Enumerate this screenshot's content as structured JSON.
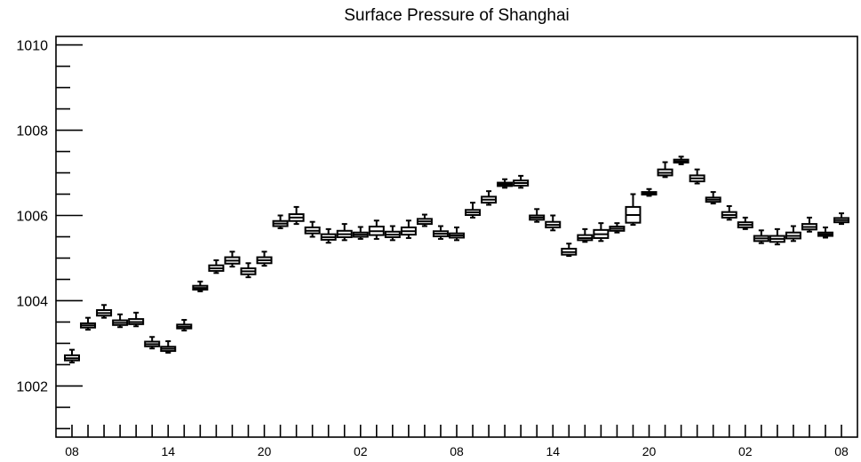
{
  "chart_data": {
    "type": "box",
    "title": "Surface Pressure of Shanghai",
    "xlabel": "",
    "ylabel": "",
    "ylim": [
      1000.8,
      1010.2
    ],
    "y_ticks": [
      "1002",
      "1004",
      "1006",
      "1008",
      "1010"
    ],
    "x_tick_labels": [
      "08",
      "14",
      "20",
      "02",
      "08",
      "14",
      "20",
      "02",
      "08"
    ],
    "x_tick_hours": [
      0,
      6,
      12,
      18,
      24,
      30,
      36,
      42,
      48
    ],
    "grid": false,
    "boxes": [
      {
        "hour": 0,
        "min": 1002.55,
        "q1": 1002.6,
        "median": 1002.65,
        "q3": 1002.72,
        "max": 1002.85
      },
      {
        "hour": 1,
        "min": 1003.32,
        "q1": 1003.37,
        "median": 1003.42,
        "q3": 1003.47,
        "max": 1003.6
      },
      {
        "hour": 2,
        "min": 1003.6,
        "q1": 1003.65,
        "median": 1003.71,
        "q3": 1003.78,
        "max": 1003.9
      },
      {
        "hour": 3,
        "min": 1003.38,
        "q1": 1003.43,
        "median": 1003.48,
        "q3": 1003.54,
        "max": 1003.68
      },
      {
        "hour": 4,
        "min": 1003.4,
        "q1": 1003.45,
        "median": 1003.5,
        "q3": 1003.57,
        "max": 1003.72
      },
      {
        "hour": 5,
        "min": 1002.88,
        "q1": 1002.93,
        "median": 1002.98,
        "q3": 1003.04,
        "max": 1003.15
      },
      {
        "hour": 6,
        "min": 1002.78,
        "q1": 1002.82,
        "median": 1002.87,
        "q3": 1002.92,
        "max": 1003.05
      },
      {
        "hour": 7,
        "min": 1003.3,
        "q1": 1003.35,
        "median": 1003.39,
        "q3": 1003.44,
        "max": 1003.55
      },
      {
        "hour": 8,
        "min": 1004.22,
        "q1": 1004.26,
        "median": 1004.3,
        "q3": 1004.35,
        "max": 1004.45
      },
      {
        "hour": 9,
        "min": 1004.65,
        "q1": 1004.7,
        "median": 1004.76,
        "q3": 1004.83,
        "max": 1004.95
      },
      {
        "hour": 10,
        "min": 1004.8,
        "q1": 1004.87,
        "median": 1004.94,
        "q3": 1005.02,
        "max": 1005.15
      },
      {
        "hour": 11,
        "min": 1004.55,
        "q1": 1004.62,
        "median": 1004.69,
        "q3": 1004.76,
        "max": 1004.88
      },
      {
        "hour": 12,
        "min": 1004.82,
        "q1": 1004.88,
        "median": 1004.95,
        "q3": 1005.02,
        "max": 1005.15
      },
      {
        "hour": 13,
        "min": 1005.7,
        "q1": 1005.75,
        "median": 1005.81,
        "q3": 1005.87,
        "max": 1006.0
      },
      {
        "hour": 14,
        "min": 1005.8,
        "q1": 1005.87,
        "median": 1005.95,
        "q3": 1006.03,
        "max": 1006.2
      },
      {
        "hour": 15,
        "min": 1005.5,
        "q1": 1005.58,
        "median": 1005.64,
        "q3": 1005.72,
        "max": 1005.85
      },
      {
        "hour": 16,
        "min": 1005.36,
        "q1": 1005.43,
        "median": 1005.49,
        "q3": 1005.56,
        "max": 1005.68
      },
      {
        "hour": 17,
        "min": 1005.42,
        "q1": 1005.49,
        "median": 1005.56,
        "q3": 1005.64,
        "max": 1005.8
      },
      {
        "hour": 18,
        "min": 1005.45,
        "q1": 1005.5,
        "median": 1005.55,
        "q3": 1005.6,
        "max": 1005.73
      },
      {
        "hour": 19,
        "min": 1005.45,
        "q1": 1005.54,
        "median": 1005.63,
        "q3": 1005.74,
        "max": 1005.88
      },
      {
        "hour": 20,
        "min": 1005.42,
        "q1": 1005.49,
        "median": 1005.55,
        "q3": 1005.62,
        "max": 1005.75
      },
      {
        "hour": 21,
        "min": 1005.47,
        "q1": 1005.55,
        "median": 1005.63,
        "q3": 1005.72,
        "max": 1005.88
      },
      {
        "hour": 22,
        "min": 1005.75,
        "q1": 1005.8,
        "median": 1005.86,
        "q3": 1005.92,
        "max": 1006.02
      },
      {
        "hour": 23,
        "min": 1005.45,
        "q1": 1005.51,
        "median": 1005.57,
        "q3": 1005.63,
        "max": 1005.75
      },
      {
        "hour": 24,
        "min": 1005.42,
        "q1": 1005.48,
        "median": 1005.53,
        "q3": 1005.58,
        "max": 1005.72
      },
      {
        "hour": 25,
        "min": 1005.95,
        "q1": 1006.01,
        "median": 1006.07,
        "q3": 1006.13,
        "max": 1006.3
      },
      {
        "hour": 26,
        "min": 1006.25,
        "q1": 1006.3,
        "median": 1006.37,
        "q3": 1006.44,
        "max": 1006.57
      },
      {
        "hour": 27,
        "min": 1006.65,
        "q1": 1006.69,
        "median": 1006.73,
        "q3": 1006.77,
        "max": 1006.85
      },
      {
        "hour": 28,
        "min": 1006.65,
        "q1": 1006.7,
        "median": 1006.76,
        "q3": 1006.82,
        "max": 1006.93
      },
      {
        "hour": 29,
        "min": 1005.85,
        "q1": 1005.9,
        "median": 1005.95,
        "q3": 1006.0,
        "max": 1006.15
      },
      {
        "hour": 30,
        "min": 1005.65,
        "q1": 1005.72,
        "median": 1005.78,
        "q3": 1005.85,
        "max": 1006.0
      },
      {
        "hour": 31,
        "min": 1005.05,
        "q1": 1005.08,
        "median": 1005.14,
        "q3": 1005.22,
        "max": 1005.34
      },
      {
        "hour": 32,
        "min": 1005.38,
        "q1": 1005.42,
        "median": 1005.47,
        "q3": 1005.54,
        "max": 1005.68
      },
      {
        "hour": 33,
        "min": 1005.4,
        "q1": 1005.47,
        "median": 1005.56,
        "q3": 1005.66,
        "max": 1005.82
      },
      {
        "hour": 34,
        "min": 1005.6,
        "q1": 1005.64,
        "median": 1005.69,
        "q3": 1005.74,
        "max": 1005.82
      },
      {
        "hour": 35,
        "min": 1005.78,
        "q1": 1005.83,
        "median": 1006.01,
        "q3": 1006.2,
        "max": 1006.5
      },
      {
        "hour": 36,
        "min": 1006.46,
        "q1": 1006.49,
        "median": 1006.52,
        "q3": 1006.55,
        "max": 1006.62
      },
      {
        "hour": 37,
        "min": 1006.9,
        "q1": 1006.94,
        "median": 1007.0,
        "q3": 1007.08,
        "max": 1007.25
      },
      {
        "hour": 38,
        "min": 1007.2,
        "q1": 1007.24,
        "median": 1007.27,
        "q3": 1007.31,
        "max": 1007.38
      },
      {
        "hour": 39,
        "min": 1006.75,
        "q1": 1006.8,
        "median": 1006.87,
        "q3": 1006.94,
        "max": 1007.08
      },
      {
        "hour": 40,
        "min": 1006.28,
        "q1": 1006.32,
        "median": 1006.37,
        "q3": 1006.42,
        "max": 1006.55
      },
      {
        "hour": 41,
        "min": 1005.9,
        "q1": 1005.95,
        "median": 1006.01,
        "q3": 1006.08,
        "max": 1006.22
      },
      {
        "hour": 42,
        "min": 1005.68,
        "q1": 1005.72,
        "median": 1005.78,
        "q3": 1005.84,
        "max": 1005.95
      },
      {
        "hour": 43,
        "min": 1005.35,
        "q1": 1005.4,
        "median": 1005.46,
        "q3": 1005.52,
        "max": 1005.65
      },
      {
        "hour": 44,
        "min": 1005.32,
        "q1": 1005.38,
        "median": 1005.45,
        "q3": 1005.52,
        "max": 1005.68
      },
      {
        "hour": 45,
        "min": 1005.4,
        "q1": 1005.46,
        "median": 1005.52,
        "q3": 1005.6,
        "max": 1005.75
      },
      {
        "hour": 46,
        "min": 1005.62,
        "q1": 1005.67,
        "median": 1005.73,
        "q3": 1005.8,
        "max": 1005.95
      },
      {
        "hour": 47,
        "min": 1005.48,
        "q1": 1005.52,
        "median": 1005.56,
        "q3": 1005.6,
        "max": 1005.72
      },
      {
        "hour": 48,
        "min": 1005.8,
        "q1": 1005.84,
        "median": 1005.89,
        "q3": 1005.94,
        "max": 1006.05
      }
    ]
  }
}
